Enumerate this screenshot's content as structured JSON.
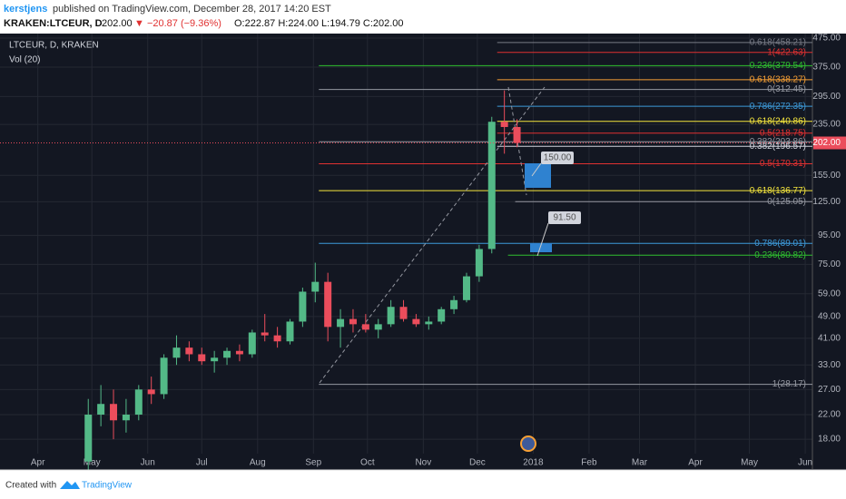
{
  "header": {
    "author": "kerstjens",
    "published": "published on TradingView.com, December 28, 2017 14:20 EST",
    "symbol": "KRAKEN:LTCEUR, D",
    "price": "202.00",
    "change": "▼ −20.87 (−9.36%)",
    "ohlc": "O:222.87 H:224.00 L:194.79 C:202.00"
  },
  "footer": {
    "created": "Created with",
    "brand": "TradingView"
  },
  "chart_data": {
    "type": "candlestick",
    "title": "LTCEUR, D, KRAKEN",
    "subtitle": "Vol (20)",
    "log_scale": true,
    "grid": true,
    "up_color": "#53b987",
    "down_color": "#eb4d5c",
    "x": [
      28,
      35,
      42,
      49,
      56,
      63,
      70,
      77,
      84,
      91,
      98,
      105,
      112,
      119,
      126,
      133,
      140,
      147,
      154,
      161,
      168,
      175,
      182,
      189,
      196,
      203,
      210,
      217,
      224,
      231,
      238,
      245,
      252,
      259,
      266
    ],
    "open": [
      15,
      22,
      24,
      21,
      22,
      27,
      26,
      35,
      38,
      36,
      34,
      35,
      37,
      36,
      43,
      42,
      40,
      47,
      60,
      65,
      45,
      48,
      46,
      44,
      46,
      53,
      48,
      46,
      47,
      52,
      56,
      68,
      85,
      240,
      230
    ],
    "high": [
      25,
      28,
      27,
      25,
      28,
      30,
      36,
      42,
      40,
      38,
      37,
      38,
      39,
      44,
      50,
      45,
      48,
      62,
      76,
      70,
      52,
      52,
      50,
      48,
      56,
      56,
      50,
      49,
      53,
      58,
      70,
      88,
      250,
      310,
      245
    ],
    "low": [
      14,
      20,
      18,
      19,
      21,
      24,
      25,
      33,
      34,
      33,
      31,
      33,
      34,
      35,
      40,
      38,
      39,
      45,
      55,
      40,
      38,
      43,
      43,
      41,
      45,
      47,
      45,
      44,
      46,
      50,
      55,
      65,
      82,
      185,
      195
    ],
    "close": [
      22,
      24,
      21,
      22,
      27,
      26,
      35,
      38,
      36,
      34,
      35,
      37,
      36,
      43,
      42,
      40,
      47,
      60,
      65,
      45,
      48,
      46,
      44,
      46,
      53,
      48,
      46,
      47,
      52,
      56,
      68,
      85,
      240,
      230,
      202
    ],
    "xlim": [
      -21,
      430
    ],
    "xticks": [
      {
        "value": 0,
        "label": "Apr"
      },
      {
        "value": 30,
        "label": "May"
      },
      {
        "value": 61,
        "label": "Jun"
      },
      {
        "value": 91,
        "label": "Jul"
      },
      {
        "value": 122,
        "label": "Aug"
      },
      {
        "value": 153,
        "label": "Sep"
      },
      {
        "value": 183,
        "label": "Oct"
      },
      {
        "value": 214,
        "label": "Nov"
      },
      {
        "value": 244,
        "label": "Dec"
      },
      {
        "value": 275,
        "label": "2018"
      },
      {
        "value": 306,
        "label": "Feb"
      },
      {
        "value": 334,
        "label": "Mar"
      },
      {
        "value": 365,
        "label": "Apr"
      },
      {
        "value": 395,
        "label": "May"
      },
      {
        "value": 426,
        "label": "Jun"
      }
    ],
    "ylim": [
      16,
      493
    ],
    "yticks": [
      {
        "value": 475,
        "label": "475.00"
      },
      {
        "value": 375,
        "label": "375.00"
      },
      {
        "value": 295,
        "label": "295.00"
      },
      {
        "value": 235,
        "label": "235.00"
      },
      {
        "value": 155,
        "label": "155.00"
      },
      {
        "value": 125,
        "label": "125.00"
      },
      {
        "value": 95,
        "label": "95.00"
      },
      {
        "value": 75,
        "label": "75.00"
      },
      {
        "value": 59,
        "label": "59.00"
      },
      {
        "value": 49,
        "label": "49.00"
      },
      {
        "value": 41,
        "label": "41.00"
      },
      {
        "value": 33,
        "label": "33.00"
      },
      {
        "value": 27,
        "label": "27.00"
      },
      {
        "value": 22,
        "label": "22.00"
      },
      {
        "value": 18,
        "label": "18.00"
      }
    ],
    "last_price": {
      "value": 202,
      "label": "202.00"
    },
    "levels": [
      {
        "label": "0.618(458.21)",
        "value": 458.21,
        "start": 255,
        "color": "#787b86"
      },
      {
        "label": "1(422.63)",
        "value": 422.63,
        "start": 255,
        "color": "#e03131"
      },
      {
        "label": "0.236(379.54)",
        "value": 379.54,
        "start": 156,
        "color": "#2fbf2f"
      },
      {
        "label": "0.618(338.27)",
        "value": 338.27,
        "start": 255,
        "color": "#f7a035"
      },
      {
        "label": "0(312.45)",
        "value": 312.45,
        "start": 156,
        "color": "#9598a1"
      },
      {
        "label": "0.786(272.35)",
        "value": 272.35,
        "start": 255,
        "color": "#3d9ad9"
      },
      {
        "label": "0.618(240.86)",
        "value": 240.86,
        "start": 255,
        "color": "#f5e63d"
      },
      {
        "label": "0.5(218.75)",
        "value": 218.75,
        "start": 255,
        "color": "#e03131"
      },
      {
        "label": "0.382(203.86)",
        "value": 203.86,
        "start": 156,
        "color": "#9598a1"
      },
      {
        "label": "0.382(196.57)",
        "value": 196.57,
        "start": 255,
        "color": "#d1d4dc"
      },
      {
        "label": "0.5(170.31)",
        "value": 170.31,
        "start": 156,
        "color": "#e03131"
      },
      {
        "label": "0.618(136.77)",
        "value": 136.77,
        "start": 156,
        "color": "#f5e63d"
      },
      {
        "label": "0(125.05)",
        "value": 125.05,
        "start": 265,
        "color": "#9598a1"
      },
      {
        "label": "0.786(89.01)",
        "value": 89.01,
        "start": 156,
        "color": "#3d9ad9"
      },
      {
        "label": "0.236(80.82)",
        "value": 80.82,
        "start": 261,
        "color": "#2fbf2f"
      },
      {
        "label": "1(28.17)",
        "value": 28.17,
        "start": 156,
        "color": "#9598a1"
      }
    ],
    "targets": [
      {
        "label": "150.00"
      },
      {
        "label": "91.50"
      }
    ]
  }
}
